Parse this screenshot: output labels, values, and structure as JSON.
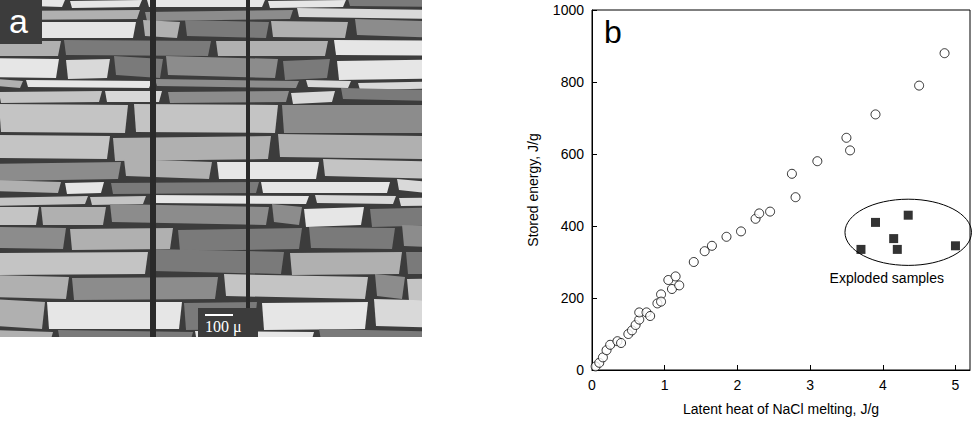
{
  "image_panel": {
    "label": "a",
    "scale_bar": "100 μ"
  },
  "chart_data": {
    "type": "scatter",
    "panel_label": "b",
    "xlabel": "Latent heat of NaCl melting, J/g",
    "ylabel": "Stored energy, J/g",
    "xlim": [
      0,
      5.2
    ],
    "xticks": [
      0,
      1,
      2,
      3,
      4,
      5
    ],
    "ylim": [
      0,
      1000
    ],
    "yticks": [
      0,
      200,
      400,
      600,
      800,
      1000
    ],
    "grid": false,
    "series": [
      {
        "marker": "circle-open",
        "color": "#000000",
        "x": [
          0.05,
          0.1,
          0.15,
          0.2,
          0.25,
          0.35,
          0.4,
          0.5,
          0.55,
          0.6,
          0.65,
          0.65,
          0.75,
          0.8,
          0.9,
          0.95,
          0.95,
          1.05,
          1.1,
          1.15,
          1.2,
          1.4,
          1.55,
          1.65,
          1.85,
          2.05,
          2.25,
          2.3,
          2.45,
          2.75,
          2.8,
          3.1,
          3.5,
          3.55,
          3.9,
          4.5,
          4.85
        ],
        "values": [
          10,
          20,
          35,
          55,
          70,
          80,
          75,
          100,
          110,
          125,
          140,
          160,
          160,
          150,
          185,
          210,
          190,
          250,
          225,
          260,
          235,
          300,
          330,
          345,
          370,
          385,
          420,
          435,
          440,
          545,
          480,
          580,
          645,
          610,
          710,
          790,
          880
        ]
      },
      {
        "name": "Exploded samples",
        "marker": "square",
        "color": "#000000",
        "x": [
          3.7,
          3.9,
          4.15,
          4.2,
          4.35,
          5.0
        ],
        "values": [
          335,
          410,
          365,
          335,
          430,
          345
        ]
      }
    ]
  }
}
